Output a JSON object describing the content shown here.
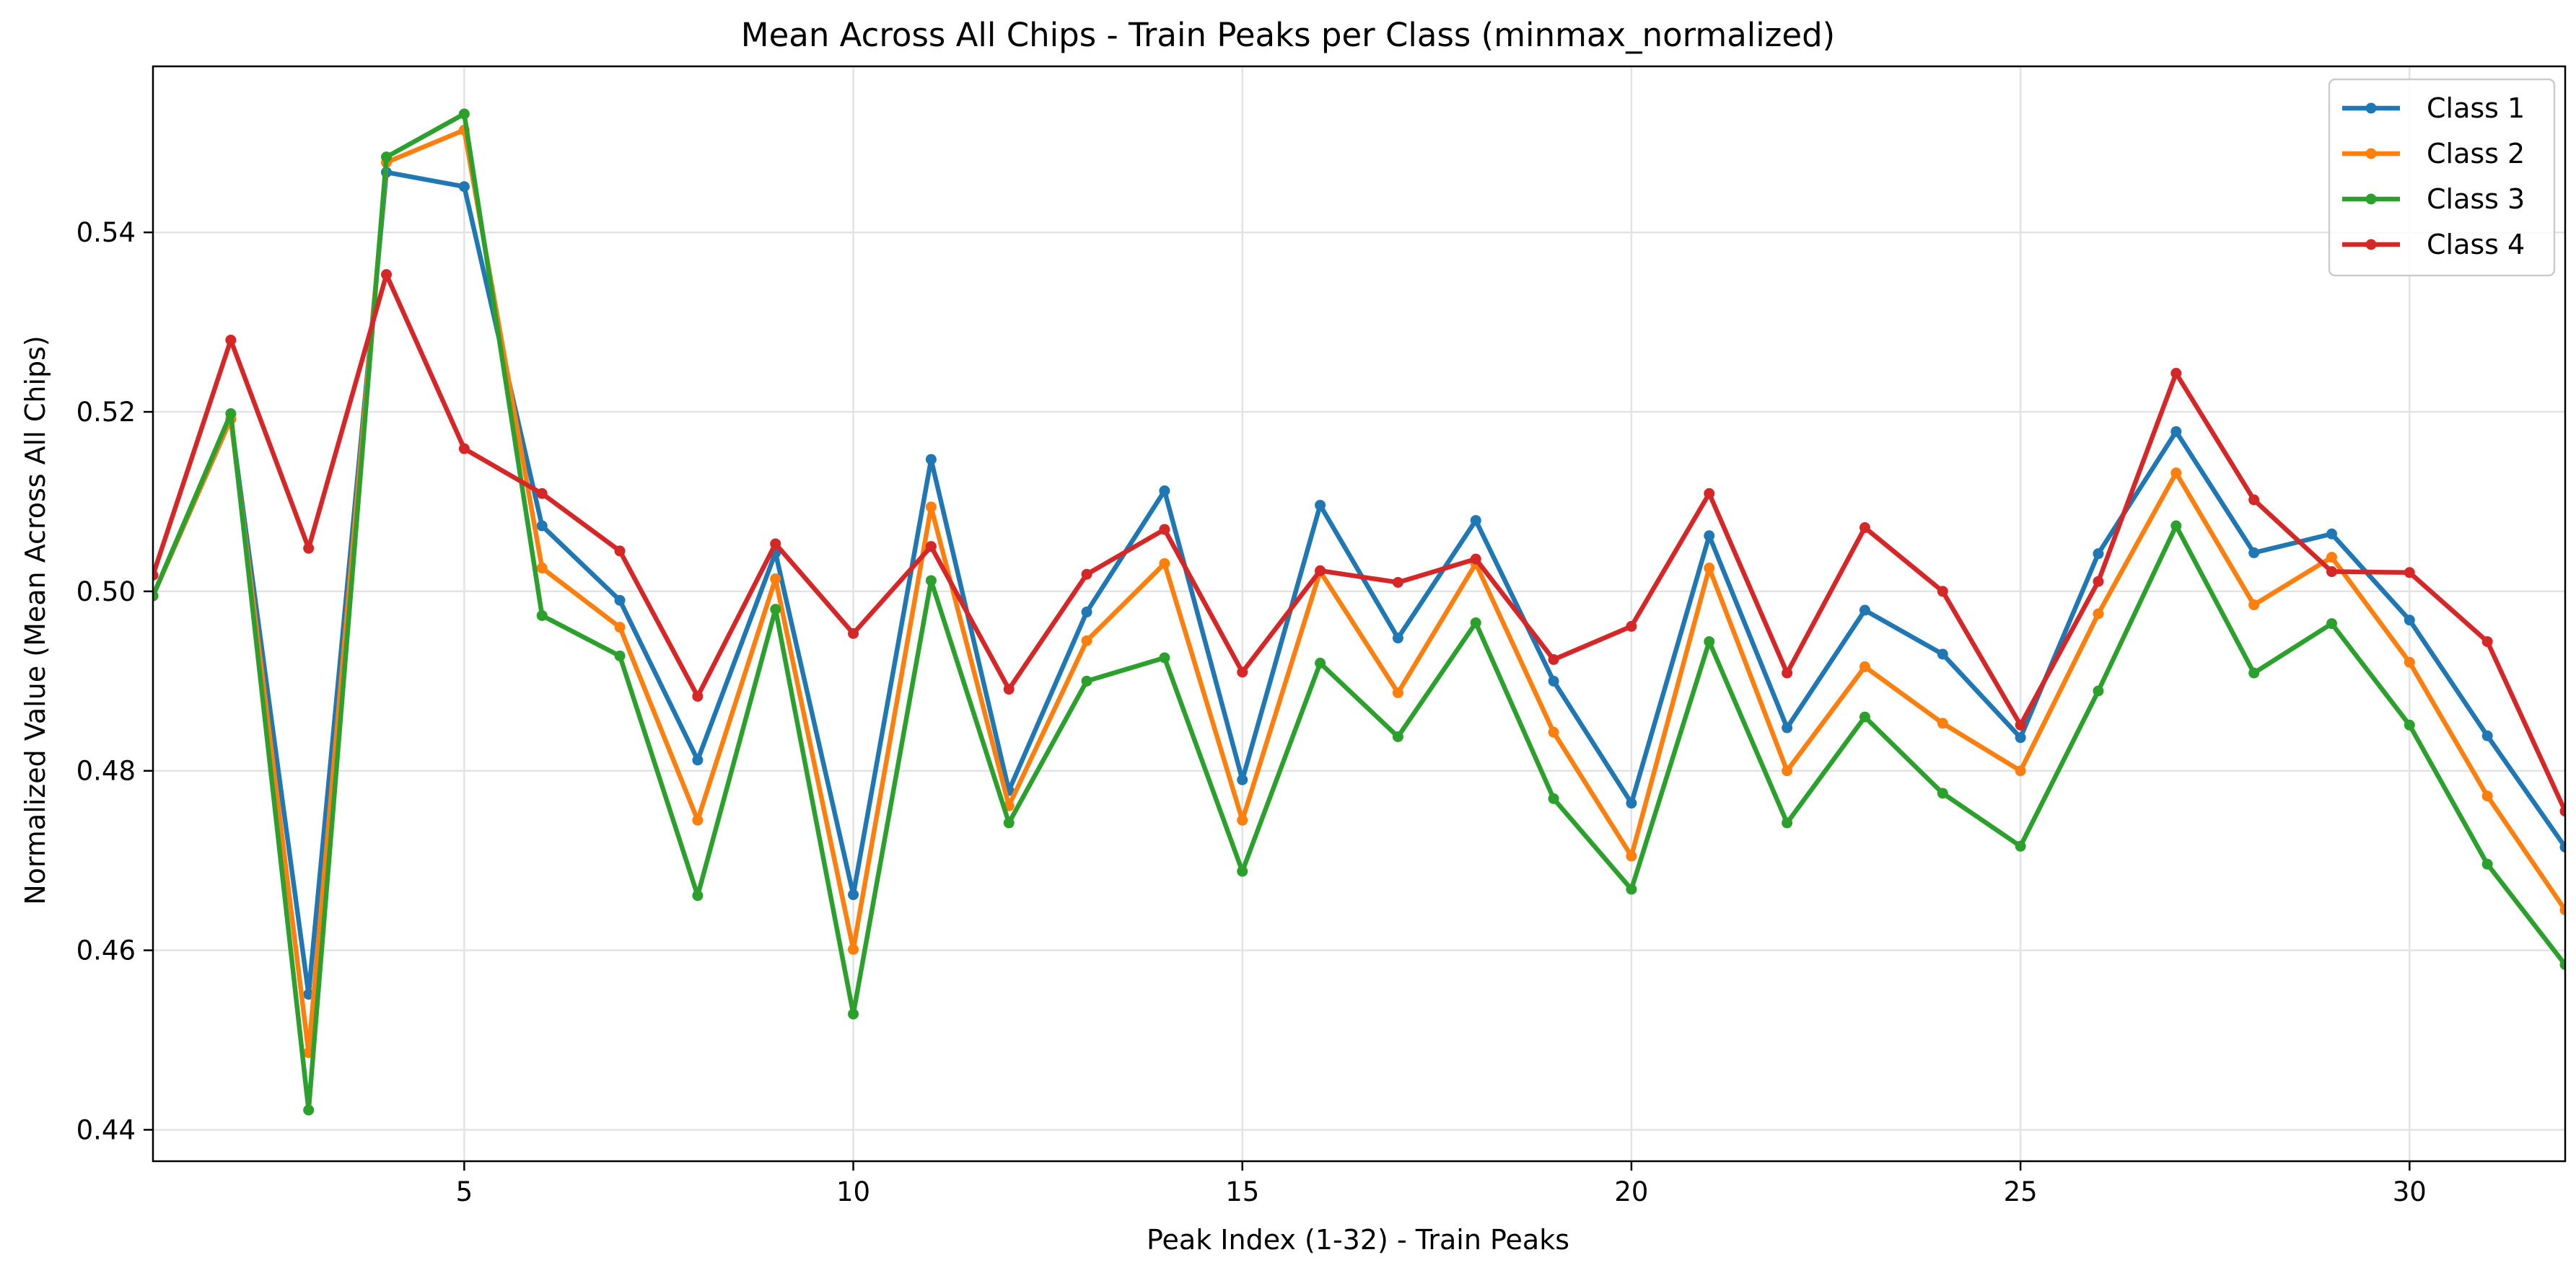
{
  "chart_data": {
    "type": "line",
    "title": "Mean Across All Chips - Train Peaks per Class (minmax_normalized)",
    "xlabel": "Peak Index (1-32) - Train Peaks",
    "ylabel": "Normalized Value (Mean Across All Chips)",
    "xlim": [
      1,
      32
    ],
    "ylim": [
      0.4365,
      0.5585
    ],
    "x_ticks": [
      5,
      10,
      15,
      20,
      25,
      30
    ],
    "y_ticks": [
      0.44,
      0.46,
      0.48,
      0.5,
      0.52,
      0.54
    ],
    "y_tick_labels": [
      "0.44",
      "0.46",
      "0.48",
      "0.50",
      "0.52",
      "0.54"
    ],
    "grid": true,
    "legend_position": "top-right",
    "x": [
      1,
      2,
      3,
      4,
      5,
      6,
      7,
      8,
      9,
      10,
      11,
      12,
      13,
      14,
      15,
      16,
      17,
      18,
      19,
      20,
      21,
      22,
      23,
      24,
      25,
      26,
      27,
      28,
      29,
      30,
      31,
      32
    ],
    "series": [
      {
        "name": "Class 1",
        "color": "#1f77b4",
        "values": [
          0.4995,
          0.5192,
          0.4551,
          0.5467,
          0.5451,
          0.5073,
          0.499,
          0.4812,
          0.5043,
          0.4662,
          0.5147,
          0.4778,
          0.4977,
          0.5112,
          0.479,
          0.5096,
          0.4948,
          0.5079,
          0.49,
          0.4764,
          0.5062,
          0.4848,
          0.4979,
          0.493,
          0.4837,
          0.5042,
          0.5178,
          0.5043,
          0.5064,
          0.4968,
          0.4839,
          0.4715
        ]
      },
      {
        "name": "Class 2",
        "color": "#ff7f0e",
        "values": [
          0.4995,
          0.5192,
          0.4486,
          0.5478,
          0.5514,
          0.5026,
          0.496,
          0.4745,
          0.5014,
          0.4601,
          0.5094,
          0.4761,
          0.4945,
          0.5031,
          0.4745,
          0.5022,
          0.4887,
          0.5031,
          0.4843,
          0.4705,
          0.5026,
          0.48,
          0.4916,
          0.4853,
          0.48,
          0.4975,
          0.5132,
          0.4985,
          0.5038,
          0.4921,
          0.4772,
          0.4645
        ]
      },
      {
        "name": "Class 3",
        "color": "#2ca02c",
        "values": [
          0.4995,
          0.5198,
          0.4422,
          0.5484,
          0.5532,
          0.4973,
          0.4928,
          0.4661,
          0.498,
          0.4529,
          0.5012,
          0.4742,
          0.49,
          0.4926,
          0.4688,
          0.492,
          0.4838,
          0.4965,
          0.4769,
          0.4668,
          0.4944,
          0.4742,
          0.486,
          0.4775,
          0.4716,
          0.4889,
          0.5073,
          0.4909,
          0.4964,
          0.4851,
          0.4696,
          0.4584
        ]
      },
      {
        "name": "Class 4",
        "color": "#d62728",
        "values": [
          0.5018,
          0.528,
          0.5048,
          0.5353,
          0.5159,
          0.5109,
          0.5045,
          0.4883,
          0.5053,
          0.4953,
          0.505,
          0.4891,
          0.5019,
          0.5069,
          0.491,
          0.5023,
          0.501,
          0.5036,
          0.4924,
          0.4961,
          0.5109,
          0.4909,
          0.5071,
          0.5,
          0.4851,
          0.5011,
          0.5243,
          0.5102,
          0.5022,
          0.5021,
          0.4944,
          0.4755
        ]
      }
    ]
  }
}
